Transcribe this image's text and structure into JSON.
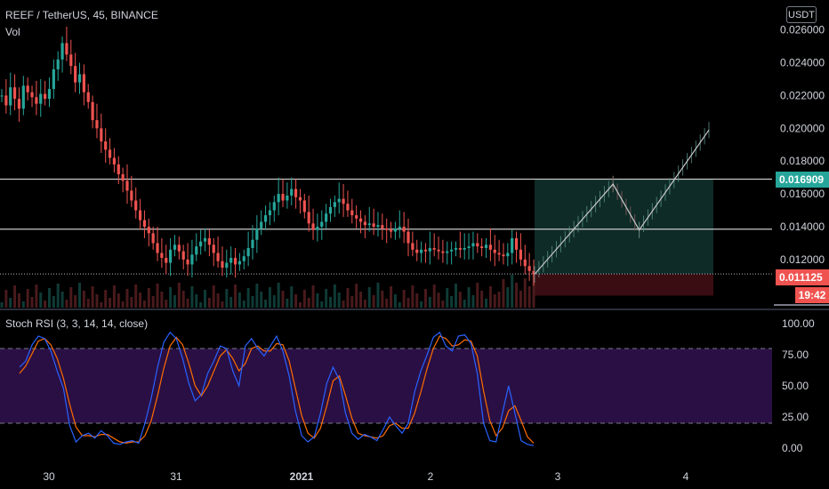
{
  "header": {
    "symbol_line": "REEF / TetherUS, 45, BINANCE",
    "volume_label": "Vol",
    "currency_button": "USDT"
  },
  "rsi_header": "Stoch RSI (3, 3, 14, 14, close)",
  "price_tags": {
    "target": "0.016909",
    "current": "0.011125",
    "countdown": "19:42"
  },
  "colors": {
    "up": "#26a69a",
    "down": "#ef5350",
    "k_line": "#2962ff",
    "d_line": "#ff6d00",
    "rsi_band": "#2a0f44",
    "long_profit": "#0e2b27",
    "long_loss": "#3a0d12"
  },
  "chart_data": [
    {
      "type": "candlestick",
      "ylim": [
        0.0095,
        0.0262
      ],
      "y_ticks": [
        "0.026000",
        "0.024000",
        "0.022000",
        "0.020000",
        "0.018000",
        "0.016000",
        "0.014000",
        "0.012000"
      ],
      "x_ticks": [
        "30",
        "31",
        "2021",
        "2",
        "3",
        "4"
      ],
      "horizontal_lines": [
        0.0169,
        0.01385,
        0.01112
      ],
      "ohlc_close_series": [
        0.022,
        0.0214,
        0.0225,
        0.0218,
        0.0212,
        0.0226,
        0.0222,
        0.0219,
        0.0215,
        0.0221,
        0.0218,
        0.0224,
        0.0236,
        0.0242,
        0.0252,
        0.0245,
        0.0238,
        0.0228,
        0.0233,
        0.0222,
        0.0216,
        0.0205,
        0.02,
        0.0192,
        0.0187,
        0.0182,
        0.0178,
        0.0172,
        0.0168,
        0.0162,
        0.0156,
        0.015,
        0.0144,
        0.014,
        0.0136,
        0.013,
        0.0124,
        0.0121,
        0.0118,
        0.0126,
        0.0129,
        0.0125,
        0.012,
        0.0117,
        0.0123,
        0.0128,
        0.0131,
        0.0133,
        0.0129,
        0.0124,
        0.0119,
        0.0115,
        0.0118,
        0.0121,
        0.0117,
        0.0119,
        0.0122,
        0.0127,
        0.0132,
        0.0139,
        0.0143,
        0.0147,
        0.015,
        0.0155,
        0.016,
        0.0156,
        0.0159,
        0.0163,
        0.0158,
        0.0156,
        0.0149,
        0.0142,
        0.0138,
        0.014,
        0.0143,
        0.0148,
        0.0152,
        0.0155,
        0.0157,
        0.0154,
        0.015,
        0.0147,
        0.0145,
        0.0143,
        0.0141,
        0.0142,
        0.014,
        0.0141,
        0.0139,
        0.0138,
        0.0137,
        0.0139,
        0.014,
        0.0137,
        0.013,
        0.0126,
        0.0124,
        0.0126,
        0.0125,
        0.0127,
        0.0126,
        0.0125,
        0.0124,
        0.0125,
        0.0126,
        0.0127,
        0.0126,
        0.0127,
        0.0128,
        0.013,
        0.0128,
        0.0127,
        0.0129,
        0.0126,
        0.0124,
        0.0123,
        0.0122,
        0.0124,
        0.0133,
        0.0126,
        0.012,
        0.0116,
        0.0113,
        0.0111
      ],
      "projection_path": [
        [
          0.0111,
          0
        ],
        [
          0.0166,
          0.45
        ],
        [
          0.0138,
          0.6
        ],
        [
          0.0199,
          1.0
        ]
      ],
      "long_position": {
        "entry": 0.01112,
        "target": 0.0169,
        "stop": 0.0098
      }
    },
    {
      "type": "line",
      "title": "Stoch RSI (3, 3, 14, 14, close)",
      "ylim": [
        0,
        100
      ],
      "y_ticks": [
        "100.00",
        "75.00",
        "50.00",
        "25.00",
        "0.00"
      ],
      "band": [
        20,
        80
      ],
      "k_values": [
        65,
        70,
        83,
        90,
        88,
        78,
        62,
        48,
        18,
        5,
        10,
        12,
        8,
        14,
        10,
        4,
        3,
        5,
        6,
        4,
        20,
        40,
        65,
        85,
        93,
        88,
        72,
        52,
        38,
        43,
        60,
        70,
        82,
        80,
        62,
        50,
        82,
        88,
        80,
        74,
        82,
        90,
        78,
        58,
        30,
        10,
        5,
        9,
        28,
        52,
        65,
        55,
        28,
        12,
        7,
        11,
        9,
        6,
        15,
        25,
        18,
        12,
        20,
        45,
        62,
        75,
        89,
        93,
        82,
        78,
        90,
        91,
        84,
        60,
        20,
        6,
        5,
        28,
        50,
        28,
        6,
        3,
        2
      ],
      "d_values": [
        60,
        66,
        76,
        86,
        88,
        83,
        72,
        56,
        35,
        17,
        10,
        10,
        9,
        11,
        11,
        8,
        5,
        4,
        5,
        5,
        10,
        22,
        42,
        64,
        82,
        89,
        83,
        68,
        50,
        42,
        50,
        62,
        74,
        79,
        72,
        62,
        68,
        80,
        82,
        78,
        78,
        84,
        83,
        70,
        48,
        26,
        12,
        8,
        16,
        34,
        54,
        58,
        42,
        24,
        12,
        10,
        9,
        8,
        10,
        18,
        20,
        16,
        16,
        28,
        45,
        64,
        80,
        90,
        88,
        82,
        83,
        87,
        86,
        74,
        46,
        22,
        10,
        16,
        30,
        34,
        22,
        9,
        4
      ]
    }
  ]
}
